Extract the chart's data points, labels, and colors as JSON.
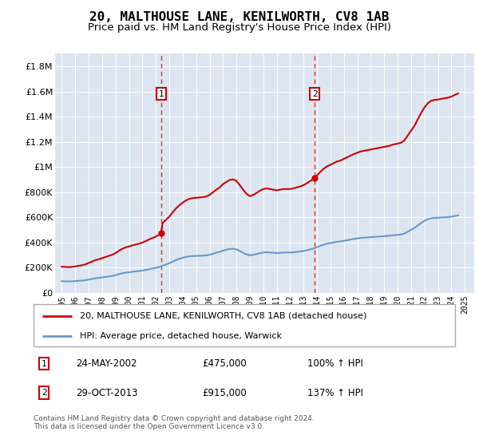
{
  "title": "20, MALTHOUSE LANE, KENILWORTH, CV8 1AB",
  "subtitle": "Price paid vs. HM Land Registry's House Price Index (HPI)",
  "title_fontsize": 11.5,
  "subtitle_fontsize": 9.5,
  "background_color": "#dde6f0",
  "plot_bg_color": "#dde6f0",
  "ylim": [
    0,
    1900000
  ],
  "yticks": [
    0,
    200000,
    400000,
    600000,
    800000,
    1000000,
    1200000,
    1400000,
    1600000,
    1800000
  ],
  "ytick_labels": [
    "£0",
    "£200K",
    "£400K",
    "£600K",
    "£800K",
    "£1M",
    "£1.2M",
    "£1.4M",
    "£1.6M",
    "£1.8M"
  ],
  "xlim_start": 1994.5,
  "xlim_end": 2025.7,
  "xticks": [
    1995,
    1996,
    1997,
    1998,
    1999,
    2000,
    2001,
    2002,
    2003,
    2004,
    2005,
    2006,
    2007,
    2008,
    2009,
    2010,
    2011,
    2012,
    2013,
    2014,
    2015,
    2016,
    2017,
    2018,
    2019,
    2020,
    2021,
    2022,
    2023,
    2024,
    2025
  ],
  "property_color": "#cc0000",
  "hpi_color": "#6699cc",
  "transaction1_x": 2002.39,
  "transaction1_y": 475000,
  "transaction2_x": 2013.83,
  "transaction2_y": 915000,
  "legend_property": "20, MALTHOUSE LANE, KENILWORTH, CV8 1AB (detached house)",
  "legend_hpi": "HPI: Average price, detached house, Warwick",
  "annotation1_date": "24-MAY-2002",
  "annotation1_price": "£475,000",
  "annotation1_hpi": "100% ↑ HPI",
  "annotation2_date": "29-OCT-2013",
  "annotation2_price": "£915,000",
  "annotation2_hpi": "137% ↑ HPI",
  "footnote": "Contains HM Land Registry data © Crown copyright and database right 2024.\nThis data is licensed under the Open Government Licence v3.0.",
  "hpi_years": [
    1995.0,
    1995.25,
    1995.5,
    1995.75,
    1996.0,
    1996.25,
    1996.5,
    1996.75,
    1997.0,
    1997.25,
    1997.5,
    1997.75,
    1998.0,
    1998.25,
    1998.5,
    1998.75,
    1999.0,
    1999.25,
    1999.5,
    1999.75,
    2000.0,
    2000.25,
    2000.5,
    2000.75,
    2001.0,
    2001.25,
    2001.5,
    2001.75,
    2002.0,
    2002.25,
    2002.5,
    2002.75,
    2003.0,
    2003.25,
    2003.5,
    2003.75,
    2004.0,
    2004.25,
    2004.5,
    2004.75,
    2005.0,
    2005.25,
    2005.5,
    2005.75,
    2006.0,
    2006.25,
    2006.5,
    2006.75,
    2007.0,
    2007.25,
    2007.5,
    2007.75,
    2008.0,
    2008.25,
    2008.5,
    2008.75,
    2009.0,
    2009.25,
    2009.5,
    2009.75,
    2010.0,
    2010.25,
    2010.5,
    2010.75,
    2011.0,
    2011.25,
    2011.5,
    2011.75,
    2012.0,
    2012.25,
    2012.5,
    2012.75,
    2013.0,
    2013.25,
    2013.5,
    2013.75,
    2014.0,
    2014.25,
    2014.5,
    2014.75,
    2015.0,
    2015.25,
    2015.5,
    2015.75,
    2016.0,
    2016.25,
    2016.5,
    2016.75,
    2017.0,
    2017.25,
    2017.5,
    2017.75,
    2018.0,
    2018.25,
    2018.5,
    2018.75,
    2019.0,
    2019.25,
    2019.5,
    2019.75,
    2020.0,
    2020.25,
    2020.5,
    2020.75,
    2021.0,
    2021.25,
    2021.5,
    2021.75,
    2022.0,
    2022.25,
    2022.5,
    2022.75,
    2023.0,
    2023.25,
    2023.5,
    2023.75,
    2024.0,
    2024.25,
    2024.5
  ],
  "hpi_values": [
    92000,
    91000,
    90500,
    91000,
    93000,
    95000,
    97000,
    100000,
    105000,
    110000,
    115000,
    118000,
    122000,
    126000,
    130000,
    134000,
    140000,
    148000,
    155000,
    160000,
    163000,
    167000,
    170000,
    173000,
    177000,
    182000,
    188000,
    193000,
    198000,
    205000,
    215000,
    225000,
    235000,
    248000,
    260000,
    270000,
    278000,
    285000,
    290000,
    292000,
    293000,
    294000,
    295000,
    297000,
    302000,
    310000,
    318000,
    325000,
    335000,
    342000,
    348000,
    350000,
    345000,
    332000,
    318000,
    305000,
    298000,
    302000,
    308000,
    315000,
    320000,
    322000,
    320000,
    318000,
    316000,
    318000,
    320000,
    320000,
    320000,
    322000,
    325000,
    328000,
    332000,
    338000,
    345000,
    352000,
    362000,
    373000,
    383000,
    390000,
    395000,
    400000,
    405000,
    408000,
    413000,
    418000,
    423000,
    428000,
    432000,
    436000,
    438000,
    440000,
    442000,
    444000,
    446000,
    448000,
    450000,
    452000,
    455000,
    458000,
    460000,
    463000,
    470000,
    485000,
    500000,
    515000,
    535000,
    555000,
    572000,
    585000,
    592000,
    595000,
    596000,
    598000,
    600000,
    602000,
    605000,
    610000,
    615000
  ]
}
